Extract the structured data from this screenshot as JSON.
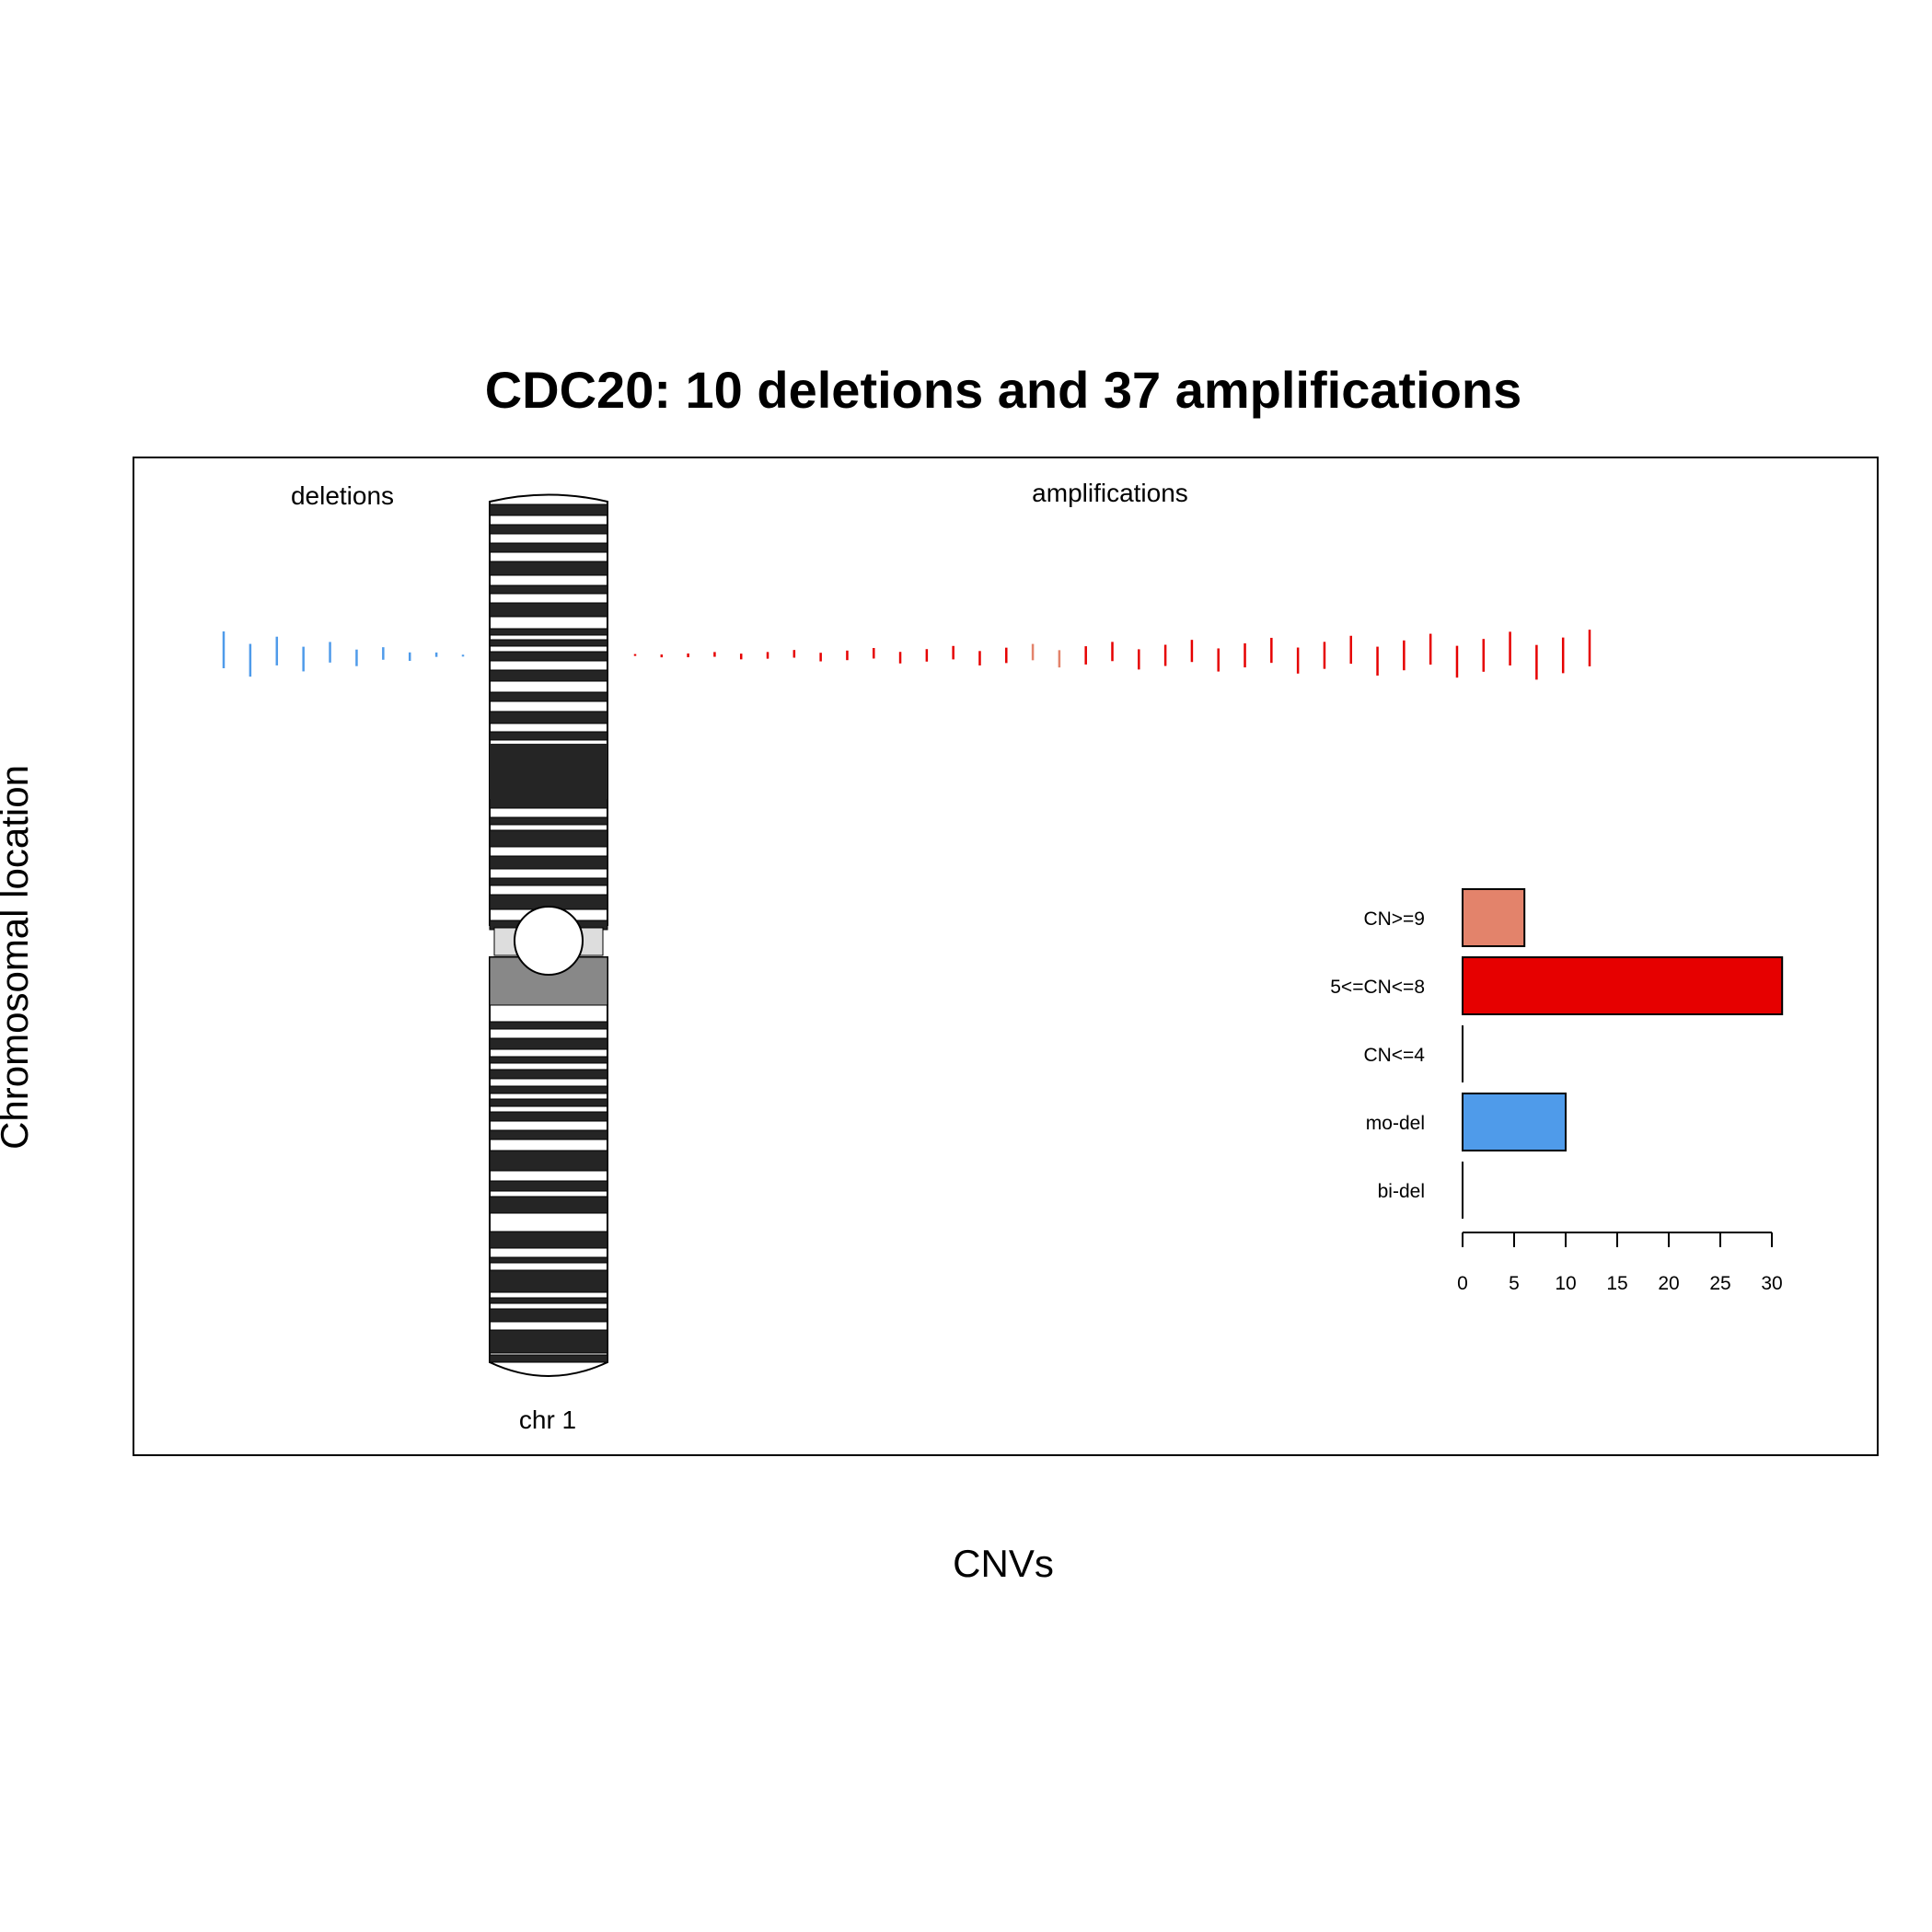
{
  "chart_data": {
    "type": "bar",
    "title": "CDC20: 10 deletions and 37 amplifications",
    "xlabel": "CNVs",
    "ylabel": "Chromosomal location",
    "panel_labels": {
      "deletions": "deletions",
      "amplifications": "amplifications"
    },
    "chromosome_label": "chr 1",
    "categories": [
      "CN>=9",
      "5<=CN<=8",
      "CN<=4",
      "mo-del",
      "bi-del"
    ],
    "values": [
      6,
      31,
      0,
      10,
      0
    ],
    "bar_colors": [
      "#E3836B",
      "#E60000",
      "#E60000",
      "#4F9BEA",
      "#4F9BEA"
    ],
    "xlim": [
      0,
      30
    ],
    "xticks": [
      "0",
      "5",
      "10",
      "15",
      "20",
      "25",
      "30"
    ],
    "deletion_color": "#4F9BEA",
    "amplification_color": "#E60000",
    "high_amplification_color": "#E3836B",
    "deletion_count": 10,
    "amplification_count": 37,
    "grid": false
  }
}
